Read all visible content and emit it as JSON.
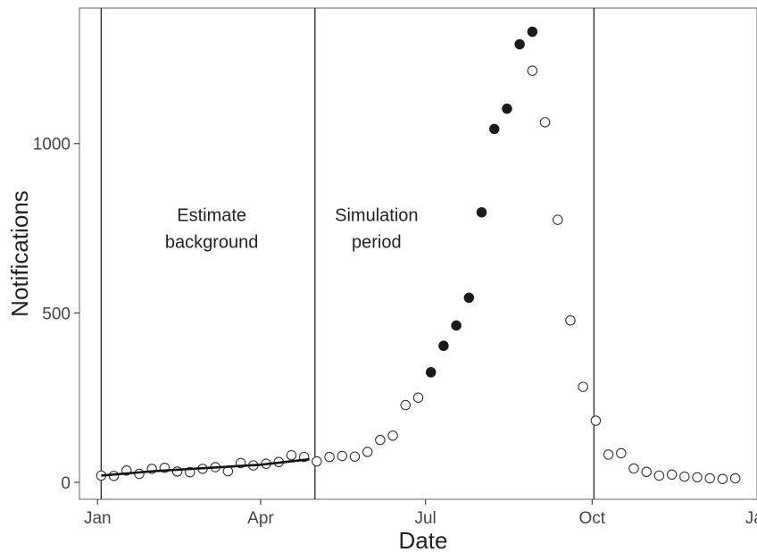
{
  "chart_data": {
    "type": "scatter",
    "xlabel": "Date",
    "ylabel": "Notifications",
    "x_ticks": [
      {
        "label": "Jan",
        "date": "2015-01-01"
      },
      {
        "label": "Apr",
        "date": "2015-04-01"
      },
      {
        "label": "Jul",
        "date": "2015-07-01"
      },
      {
        "label": "Oct",
        "date": "2015-10-01"
      },
      {
        "label": "Jan",
        "date": "2016-01-01"
      }
    ],
    "y_ticks": [
      0,
      500,
      1000
    ],
    "ylim": [
      -50,
      1400
    ],
    "xlim": [
      "2014-12-22",
      "2015-12-31"
    ],
    "grid": false,
    "vlines": [
      "2015-01-03",
      "2015-05-01",
      "2015-10-02"
    ],
    "annotations": [
      {
        "lines": [
          "Estimate",
          "background"
        ],
        "date": "2015-03-05",
        "y": 750
      },
      {
        "lines": [
          "Simulation",
          "period"
        ],
        "date": "2015-06-04",
        "y": 750
      }
    ],
    "series": [
      {
        "marker": "open-circle",
        "points": [
          [
            "2015-01-03",
            20
          ],
          [
            "2015-01-10",
            19
          ],
          [
            "2015-01-17",
            35
          ],
          [
            "2015-01-24",
            25
          ],
          [
            "2015-01-31",
            40
          ],
          [
            "2015-02-07",
            43
          ],
          [
            "2015-02-14",
            32
          ],
          [
            "2015-02-21",
            30
          ],
          [
            "2015-02-28",
            40
          ],
          [
            "2015-03-07",
            45
          ],
          [
            "2015-03-14",
            33
          ],
          [
            "2015-03-21",
            57
          ],
          [
            "2015-03-28",
            50
          ],
          [
            "2015-04-04",
            55
          ],
          [
            "2015-04-11",
            60
          ],
          [
            "2015-04-18",
            80
          ],
          [
            "2015-04-25",
            75
          ],
          [
            "2015-05-02",
            62
          ],
          [
            "2015-05-09",
            75
          ],
          [
            "2015-05-16",
            78
          ],
          [
            "2015-05-23",
            76
          ],
          [
            "2015-05-30",
            90
          ],
          [
            "2015-06-06",
            125
          ],
          [
            "2015-06-13",
            138
          ],
          [
            "2015-06-20",
            228
          ],
          [
            "2015-06-27",
            250
          ],
          [
            "2015-08-29",
            1215
          ],
          [
            "2015-09-05",
            1063
          ],
          [
            "2015-09-12",
            775
          ],
          [
            "2015-09-19",
            478
          ],
          [
            "2015-09-26",
            282
          ],
          [
            "2015-10-03",
            182
          ],
          [
            "2015-10-10",
            82
          ],
          [
            "2015-10-17",
            86
          ],
          [
            "2015-10-24",
            41
          ],
          [
            "2015-10-31",
            31
          ],
          [
            "2015-11-07",
            20
          ],
          [
            "2015-11-14",
            23
          ],
          [
            "2015-11-21",
            17
          ],
          [
            "2015-11-28",
            15
          ],
          [
            "2015-12-05",
            12
          ],
          [
            "2015-12-12",
            10
          ],
          [
            "2015-12-19",
            12
          ]
        ]
      },
      {
        "marker": "filled-circle",
        "points": [
          [
            "2015-07-04",
            325
          ],
          [
            "2015-07-11",
            403
          ],
          [
            "2015-07-18",
            463
          ],
          [
            "2015-07-25",
            545
          ],
          [
            "2015-08-01",
            797
          ],
          [
            "2015-08-08",
            1043
          ],
          [
            "2015-08-15",
            1103
          ],
          [
            "2015-08-22",
            1293
          ],
          [
            "2015-08-29",
            1330
          ]
        ]
      },
      {
        "marker": "line",
        "points": [
          [
            "2015-01-03",
            20
          ],
          [
            "2015-02-01",
            33
          ],
          [
            "2015-03-01",
            42
          ],
          [
            "2015-04-01",
            52
          ],
          [
            "2015-04-28",
            68
          ]
        ]
      }
    ]
  }
}
